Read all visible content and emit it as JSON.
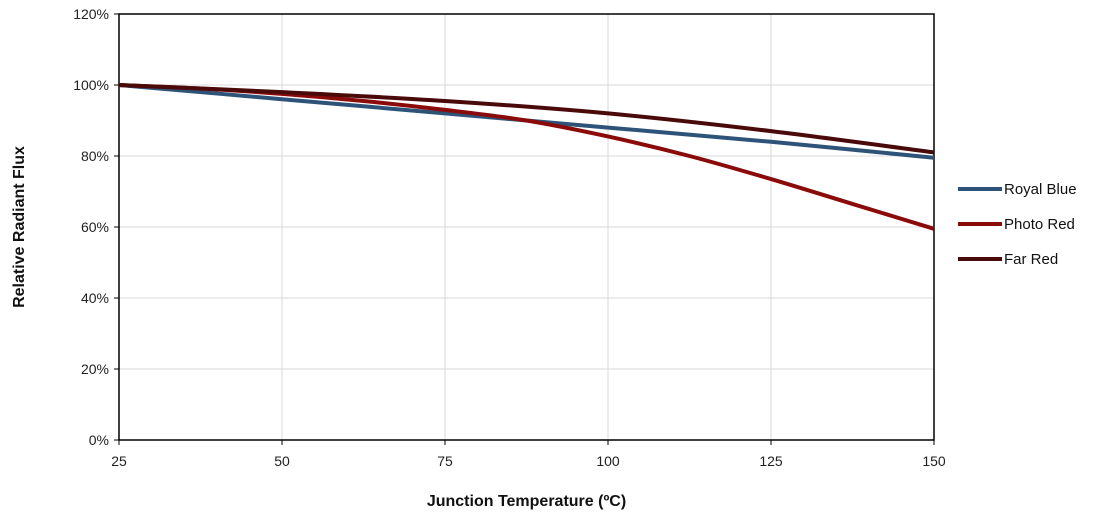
{
  "chart_data": {
    "type": "line",
    "title": "",
    "xlabel": "Junction Temperature (ºC)",
    "ylabel": "Relative Radiant Flux",
    "xlim": [
      25,
      150
    ],
    "ylim": [
      0,
      120
    ],
    "x_ticks": [
      25,
      50,
      75,
      100,
      125,
      150
    ],
    "x_tick_labels": [
      "25",
      "50",
      "75",
      "100",
      "125",
      "150"
    ],
    "y_ticks": [
      0,
      20,
      40,
      60,
      80,
      100,
      120
    ],
    "y_tick_labels": [
      "0%",
      "20%",
      "40%",
      "60%",
      "80%",
      "100%",
      "120%"
    ],
    "grid": true,
    "legend_position": "right",
    "series": [
      {
        "name": "Royal Blue",
        "color": "#2e5378",
        "x": [
          25,
          50,
          75,
          100,
          125,
          150
        ],
        "y": [
          100,
          96,
          92,
          88,
          84,
          79.5
        ]
      },
      {
        "name": "Photo Red",
        "color": "#8b0a0a",
        "x": [
          25,
          37.5,
          50,
          62.5,
          75,
          87.5,
          100,
          112.5,
          125,
          137.5,
          150
        ],
        "y": [
          100,
          99,
          97.5,
          95.5,
          93,
          90,
          85.5,
          80,
          73.5,
          66.5,
          59.5
        ]
      },
      {
        "name": "Far Red",
        "color": "#4a0a0a",
        "x": [
          25,
          50,
          75,
          100,
          125,
          150
        ],
        "y": [
          100,
          98,
          95.5,
          92,
          87,
          81
        ]
      }
    ]
  }
}
